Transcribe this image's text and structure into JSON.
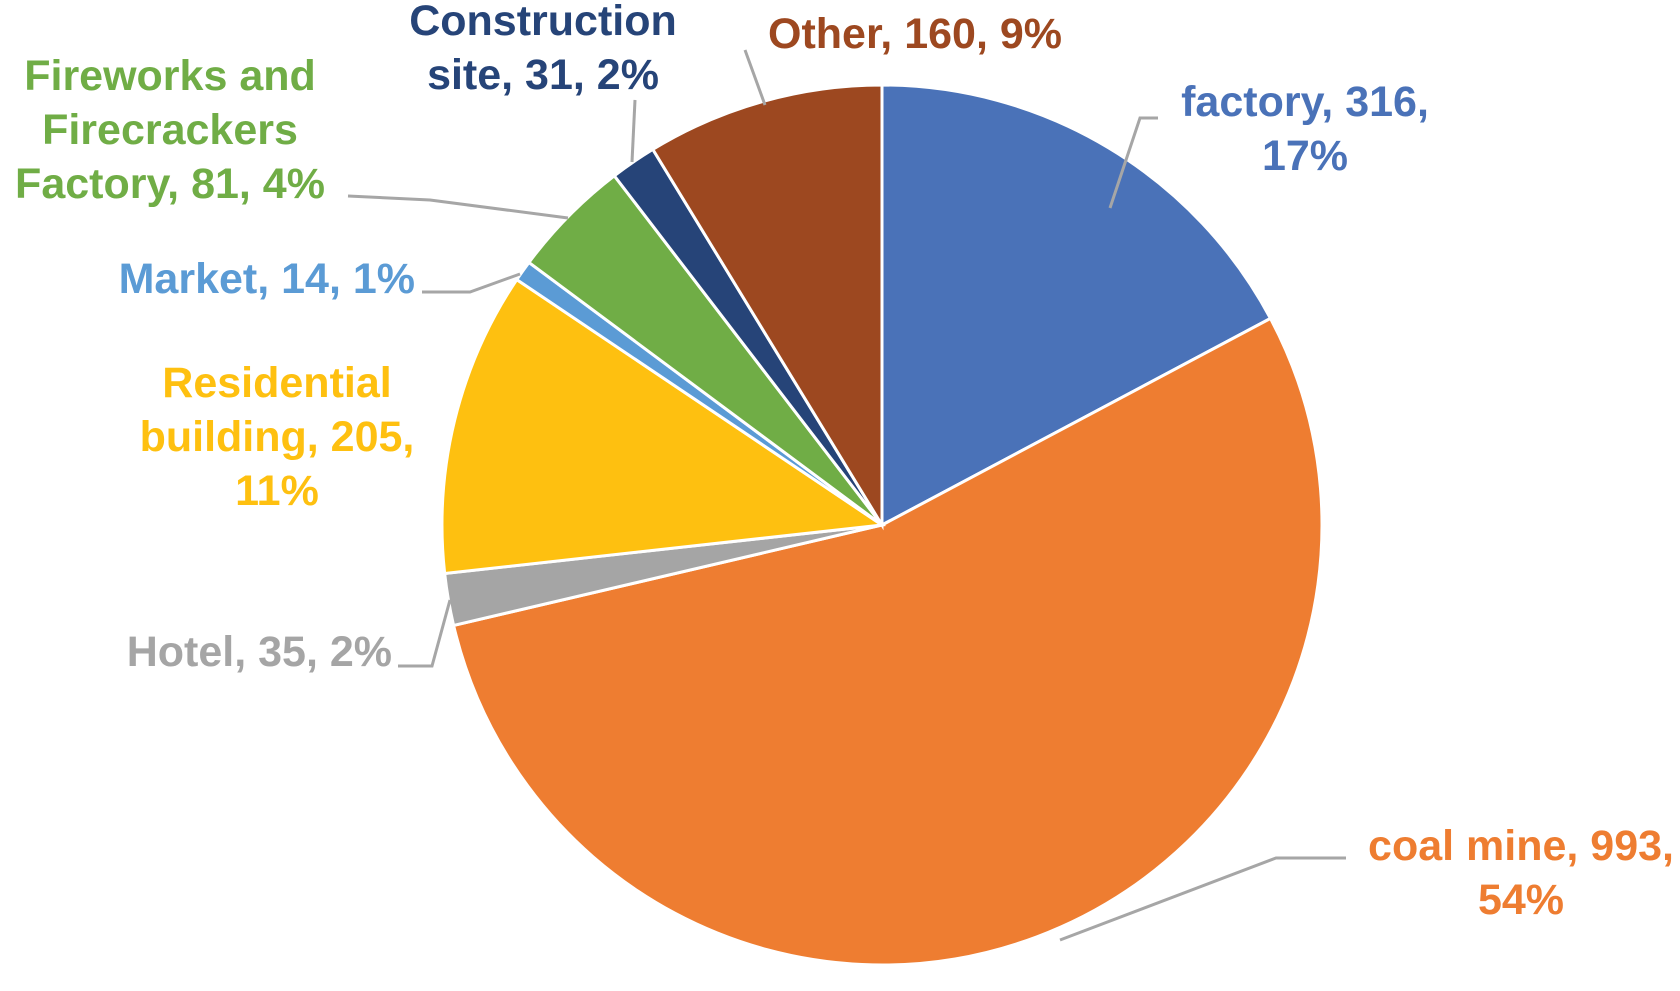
{
  "chart_data": {
    "type": "pie",
    "slices": [
      {
        "category": "factory",
        "value": 316,
        "percent": "17%",
        "color": "#4a72b8",
        "label_lines": [
          "factory, 316,",
          "17%"
        ]
      },
      {
        "category": "coal mine",
        "value": 993,
        "percent": "54%",
        "color": "#ee7d31",
        "label_lines": [
          "coal mine, 993,",
          "54%"
        ]
      },
      {
        "category": "Hotel",
        "value": 35,
        "percent": "2%",
        "color": "#a5a5a5",
        "label_lines": [
          "Hotel, 35, 2%"
        ]
      },
      {
        "category": "Residential building",
        "value": 205,
        "percent": "11%",
        "color": "#fec010",
        "label_lines": [
          "Residential",
          "building, 205,",
          "11%"
        ]
      },
      {
        "category": "Market",
        "value": 14,
        "percent": "1%",
        "color": "#5b9bd5",
        "label_lines": [
          "Market, 14, 1%"
        ]
      },
      {
        "category": "Fireworks and Firecrackers Factory",
        "value": 81,
        "percent": "4%",
        "color": "#70ad46",
        "label_lines": [
          "Fireworks and",
          "Firecrackers",
          "Factory, 81, 4%"
        ]
      },
      {
        "category": "Construction site",
        "value": 31,
        "percent": "2%",
        "color": "#264478",
        "label_lines": [
          "Construction",
          "site, 31, 2%"
        ]
      },
      {
        "category": "Other",
        "value": 160,
        "percent": "9%",
        "color": "#9d4820",
        "label_lines": [
          "Other, 160, 9%"
        ]
      }
    ],
    "start": "12 o'clock",
    "direction": "clockwise",
    "legend": "none"
  }
}
